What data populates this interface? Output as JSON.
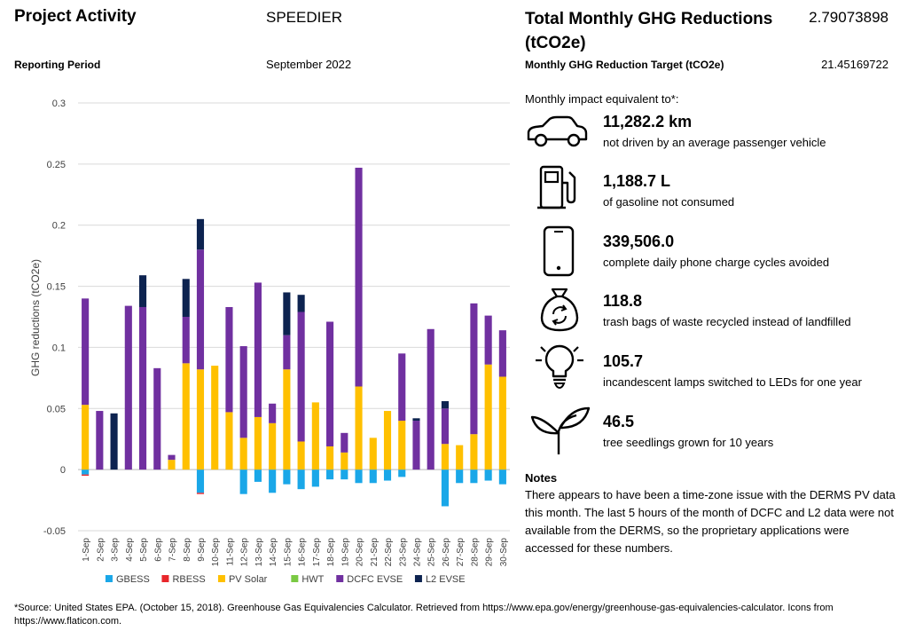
{
  "header": {
    "project_activity_label": "Project Activity",
    "project_name": "SPEEDIER",
    "reporting_period_label": "Reporting Period",
    "reporting_period_value": "September 2022",
    "total_label": "Total Monthly GHG Reductions (tCO2e)",
    "total_value": "2.79073898",
    "target_label": "Monthly GHG Reduction Target (tCO2e)",
    "target_value": "21.45169722"
  },
  "impacts": {
    "intro": "Monthly impact equivalent to*:",
    "items": [
      {
        "value": "11,282.2 km",
        "desc": "not driven by an average passenger vehicle",
        "icon": "car-icon"
      },
      {
        "value": "1,188.7 L",
        "desc": "of gasoline not consumed",
        "icon": "gas-pump-icon"
      },
      {
        "value": "339,506.0",
        "desc": "complete daily phone charge cycles avoided",
        "icon": "phone-icon"
      },
      {
        "value": "118.8",
        "desc": "trash bags of waste recycled instead of landfilled",
        "icon": "recycle-bag-icon"
      },
      {
        "value": "105.7",
        "desc": "incandescent lamps switched to LEDs for one year",
        "icon": "lightbulb-icon"
      },
      {
        "value": "46.5",
        "desc": "tree seedlings grown for 10 years",
        "icon": "seedling-icon"
      }
    ]
  },
  "notes": {
    "title": "Notes",
    "text": "There appears to have been a time-zone issue with the DERMS PV data this month. The last 5 hours of the month of DCFC and L2 data were not available from the DERMS, so the proprietary applications were accessed for these numbers."
  },
  "footnote": "*Source: United States EPA. (October 15, 2018). Greenhouse Gas Equivalencies Calculator. Retrieved from https://www.epa.gov/energy/greenhouse-gas-equivalencies-calculator. Icons from https://www.flaticon.com.",
  "chart_data": {
    "type": "bar",
    "stacked": true,
    "ylabel": "GHG reductions (tCO2e)",
    "ylim": [
      -0.05,
      0.3
    ],
    "yticks": [
      -0.05,
      0,
      0.05,
      0.1,
      0.15,
      0.2,
      0.25,
      0.3
    ],
    "ytick_labels": [
      "-0.05",
      "0",
      "0.05",
      "0.1",
      "0.15",
      "0.2",
      "0.25",
      "0.3"
    ],
    "grid": true,
    "legend_position": "bottom",
    "categories": [
      "1-Sep",
      "2-Sep",
      "3-Sep",
      "4-Sep",
      "5-Sep",
      "6-Sep",
      "7-Sep",
      "8-Sep",
      "9-Sep",
      "10-Sep",
      "11-Sep",
      "12-Sep",
      "13-Sep",
      "14-Sep",
      "15-Sep",
      "16-Sep",
      "17-Sep",
      "18-Sep",
      "19-Sep",
      "20-Sep",
      "21-Sep",
      "22-Sep",
      "23-Sep",
      "24-Sep",
      "25-Sep",
      "26-Sep",
      "27-Sep",
      "28-Sep",
      "29-Sep",
      "30-Sep"
    ],
    "series": [
      {
        "name": "GBESS",
        "color": "#1AA7E8",
        "values": [
          -0.004,
          0,
          0,
          0,
          0,
          0,
          0,
          0,
          -0.019,
          0,
          0,
          -0.02,
          -0.01,
          -0.019,
          -0.012,
          -0.016,
          -0.014,
          -0.008,
          -0.008,
          -0.011,
          -0.011,
          -0.009,
          -0.006,
          0,
          0,
          -0.03,
          -0.011,
          -0.011,
          -0.009,
          -0.012
        ]
      },
      {
        "name": "RBESS",
        "color": "#E8262B",
        "values": [
          -0.001,
          0,
          0,
          0,
          0,
          0,
          0,
          0,
          -0.001,
          0,
          0,
          0,
          0,
          0,
          0,
          0,
          0,
          0,
          0,
          0,
          0,
          0,
          0,
          0,
          0,
          0,
          0,
          0,
          0,
          0
        ]
      },
      {
        "name": "PV Solar",
        "color": "#FFC000",
        "values": [
          0.053,
          0,
          0,
          0,
          0,
          0,
          0.008,
          0.087,
          0.082,
          0.085,
          0.047,
          0.026,
          0.043,
          0.038,
          0.082,
          0.023,
          0.055,
          0.019,
          0.014,
          0.068,
          0.026,
          0.048,
          0.04,
          0,
          0,
          0.021,
          0.02,
          0.029,
          0.086,
          0.076
        ]
      },
      {
        "name": "HWT",
        "color": "#7AC943",
        "values": [
          0,
          0,
          0,
          0,
          0,
          0,
          0,
          0,
          0,
          0,
          0,
          0,
          0,
          0,
          0,
          0,
          0,
          0,
          0,
          0,
          0,
          0,
          0,
          0,
          0,
          0,
          0,
          0,
          0,
          0
        ]
      },
      {
        "name": "DCFC EVSE",
        "color": "#7030A0",
        "values": [
          0.087,
          0.048,
          0,
          0.134,
          0.133,
          0.083,
          0.004,
          0.038,
          0.098,
          0,
          0.086,
          0.075,
          0.11,
          0.016,
          0.028,
          0.106,
          0,
          0.102,
          0.016,
          0.179,
          0,
          0,
          0.055,
          0.04,
          0.115,
          0.029,
          0,
          0.107,
          0.04,
          0.038
        ]
      },
      {
        "name": "L2 EVSE",
        "color": "#0D2350",
        "values": [
          0,
          0,
          0.046,
          0,
          0.026,
          0,
          0,
          0.031,
          0.025,
          0,
          0,
          0,
          0,
          0,
          0.035,
          0.014,
          0,
          0,
          0,
          0,
          0,
          0,
          0,
          0.002,
          0,
          0.006,
          0,
          0,
          0,
          0
        ]
      }
    ]
  }
}
